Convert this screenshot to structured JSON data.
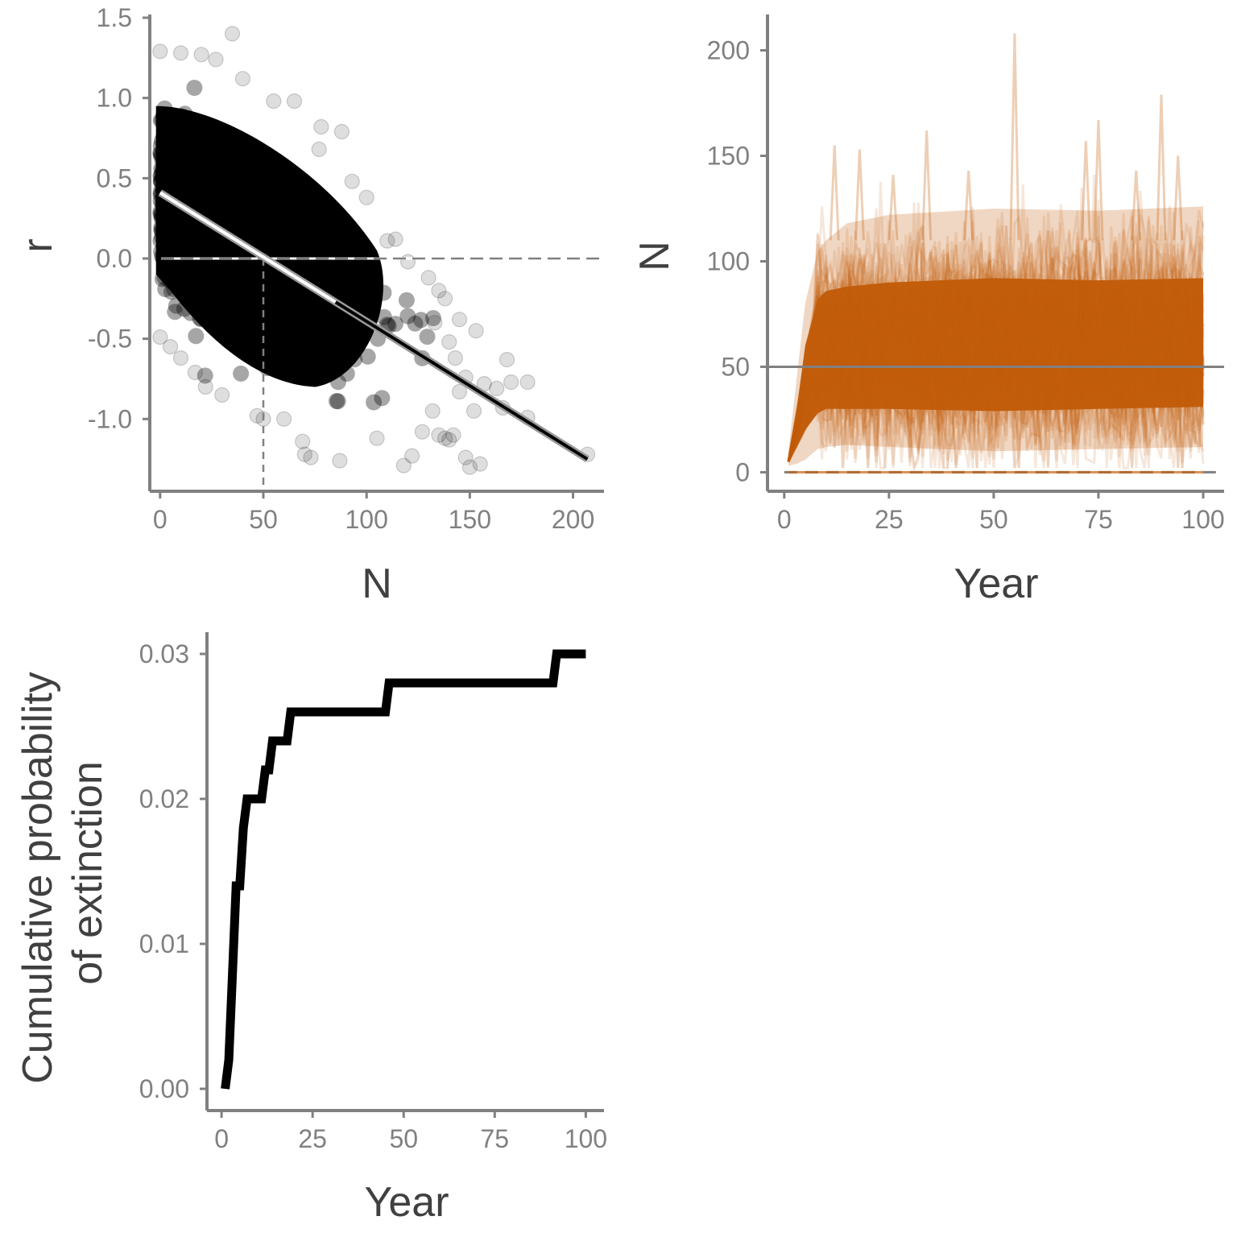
{
  "colors": {
    "axis": "#808080",
    "text": "#404040",
    "points": "#000000",
    "trajectories": "#C45F0E",
    "reference_line": "#808080"
  },
  "chart_data": [
    {
      "id": "panel-a",
      "type": "scatter",
      "xlabel": "N",
      "ylabel": "r",
      "xlim": [
        -5,
        215
      ],
      "ylim": [
        -1.45,
        1.52
      ],
      "xticks": [
        0,
        50,
        100,
        150,
        200
      ],
      "xtick_labels": [
        "0",
        "50",
        "100",
        "150",
        "200"
      ],
      "yticks": [
        -1.0,
        -0.5,
        0.0,
        0.5,
        1.0,
        1.5
      ],
      "ytick_labels": [
        "-1.0",
        "-0.5",
        "0.0",
        "0.5",
        "1.0",
        "1.5"
      ],
      "grid": false,
      "point_color": "#000000",
      "point_opacity": 0.12,
      "highlighted_points": [
        {
          "x": 35,
          "y": 1.4
        },
        {
          "x": 0,
          "y": 1.29
        },
        {
          "x": 10,
          "y": 1.28
        },
        {
          "x": 20,
          "y": 1.27
        },
        {
          "x": 27,
          "y": 1.24
        },
        {
          "x": 40,
          "y": 1.12
        },
        {
          "x": 55,
          "y": 0.98
        },
        {
          "x": 65,
          "y": 0.98
        },
        {
          "x": 78,
          "y": 0.82
        },
        {
          "x": 88,
          "y": 0.79
        },
        {
          "x": 77,
          "y": 0.68
        },
        {
          "x": 93,
          "y": 0.48
        },
        {
          "x": 100,
          "y": 0.38
        },
        {
          "x": 110,
          "y": 0.11
        },
        {
          "x": 114,
          "y": 0.12
        },
        {
          "x": 120,
          "y": -0.02
        },
        {
          "x": 130,
          "y": -0.12
        },
        {
          "x": 135,
          "y": -0.2
        },
        {
          "x": 138,
          "y": -0.25
        },
        {
          "x": 133,
          "y": -0.4
        },
        {
          "x": 140,
          "y": -0.52
        },
        {
          "x": 145,
          "y": -0.38
        },
        {
          "x": 153,
          "y": -0.45
        },
        {
          "x": 143,
          "y": -0.62
        },
        {
          "x": 148,
          "y": -0.74
        },
        {
          "x": 157,
          "y": -0.78
        },
        {
          "x": 145,
          "y": -0.83
        },
        {
          "x": 163,
          "y": -0.81
        },
        {
          "x": 168,
          "y": -0.63
        },
        {
          "x": 170,
          "y": -0.77
        },
        {
          "x": 178,
          "y": -0.77
        },
        {
          "x": 166,
          "y": -0.93
        },
        {
          "x": 178,
          "y": -0.99
        },
        {
          "x": 152,
          "y": -0.95
        },
        {
          "x": 138,
          "y": -1.12
        },
        {
          "x": 148,
          "y": -1.24
        },
        {
          "x": 140,
          "y": -1.13
        },
        {
          "x": 155,
          "y": -1.28
        },
        {
          "x": 150,
          "y": -1.3
        },
        {
          "x": 122,
          "y": -1.23
        },
        {
          "x": 118,
          "y": -1.29
        },
        {
          "x": 105,
          "y": -1.12
        },
        {
          "x": 73,
          "y": -1.24
        },
        {
          "x": 87,
          "y": -1.26
        },
        {
          "x": 70,
          "y": -1.22
        },
        {
          "x": 69,
          "y": -1.14
        },
        {
          "x": 60,
          "y": -1.0
        },
        {
          "x": 50,
          "y": -1.0
        },
        {
          "x": 47,
          "y": -0.98
        },
        {
          "x": 30,
          "y": -0.85
        },
        {
          "x": 22,
          "y": -0.8
        },
        {
          "x": 17,
          "y": -0.71
        },
        {
          "x": 10,
          "y": -0.62
        },
        {
          "x": 5,
          "y": -0.55
        },
        {
          "x": 0,
          "y": -0.49
        },
        {
          "x": 207,
          "y": -1.22
        },
        {
          "x": 127,
          "y": -1.08
        },
        {
          "x": 135,
          "y": -1.1
        },
        {
          "x": 142,
          "y": -1.1
        },
        {
          "x": 132,
          "y": -0.95
        }
      ],
      "fit_line": {
        "x": [
          0,
          207
        ],
        "y": [
          0.41,
          -1.25
        ]
      },
      "reference_hline": {
        "y": 0.0,
        "style": "dashed"
      },
      "reference_vline": {
        "x": 50,
        "y_end": 0.0,
        "style": "dashed"
      }
    },
    {
      "id": "panel-b",
      "type": "line",
      "xlabel": "Year",
      "ylabel": "N",
      "xlim": [
        -4,
        105
      ],
      "ylim": [
        -9,
        217
      ],
      "xticks": [
        0,
        25,
        50,
        75,
        100
      ],
      "xtick_labels": [
        "0",
        "25",
        "50",
        "75",
        "100"
      ],
      "yticks": [
        0,
        50,
        100,
        150,
        200
      ],
      "ytick_labels": [
        "0",
        "50",
        "100",
        "150",
        "200"
      ],
      "grid": false,
      "line_color": "#C45F0E",
      "line_opacity": 0.12,
      "initial_N": 5,
      "carrying_capacity_line": {
        "y": 50,
        "style": "solid"
      },
      "zero_line": {
        "y": 0,
        "style": "dashed"
      },
      "band": {
        "years": [
          1,
          3,
          5,
          8,
          10,
          15,
          25,
          50,
          75,
          100
        ],
        "lower": [
          3,
          4,
          6,
          11,
          12,
          13,
          12,
          10,
          11,
          12
        ],
        "central_lower": [
          5,
          12,
          20,
          28,
          30,
          30,
          30,
          29,
          30,
          31
        ],
        "central_upper": [
          8,
          30,
          60,
          82,
          86,
          88,
          90,
          92,
          91,
          92
        ],
        "upper": [
          10,
          45,
          80,
          105,
          110,
          118,
          122,
          125,
          124,
          126
        ]
      },
      "spikes": [
        {
          "x": 12,
          "y": 155
        },
        {
          "x": 18,
          "y": 153
        },
        {
          "x": 34,
          "y": 162
        },
        {
          "x": 55,
          "y": 208
        },
        {
          "x": 72,
          "y": 157
        },
        {
          "x": 75,
          "y": 167
        },
        {
          "x": 90,
          "y": 179
        },
        {
          "x": 94,
          "y": 150
        },
        {
          "x": 26,
          "y": 141
        },
        {
          "x": 44,
          "y": 143
        },
        {
          "x": 84,
          "y": 143
        }
      ]
    },
    {
      "id": "panel-c",
      "type": "line",
      "xlabel": "Year",
      "ylabel_lines": [
        "Cumulative probability",
        "of extinction"
      ],
      "xlim": [
        -4,
        105
      ],
      "ylim": [
        -0.0015,
        0.0315
      ],
      "xticks": [
        0,
        25,
        50,
        75,
        100
      ],
      "xtick_labels": [
        "0",
        "25",
        "50",
        "75",
        "100"
      ],
      "yticks": [
        0.0,
        0.01,
        0.02,
        0.03
      ],
      "ytick_labels": [
        "0.00",
        "0.01",
        "0.02",
        "0.03"
      ],
      "grid": false,
      "line_color": "#000000",
      "x": [
        1,
        2,
        3,
        4,
        5,
        6,
        7,
        8,
        9,
        10,
        11,
        12,
        13,
        14,
        15,
        16,
        17,
        18,
        19,
        20,
        25,
        30,
        35,
        40,
        45,
        46,
        47,
        50,
        60,
        70,
        80,
        90,
        91,
        92,
        93,
        100
      ],
      "y": [
        0.0,
        0.002,
        0.008,
        0.014,
        0.014,
        0.018,
        0.02,
        0.02,
        0.02,
        0.02,
        0.02,
        0.022,
        0.022,
        0.024,
        0.024,
        0.024,
        0.024,
        0.024,
        0.026,
        0.026,
        0.026,
        0.026,
        0.026,
        0.026,
        0.026,
        0.028,
        0.028,
        0.028,
        0.028,
        0.028,
        0.028,
        0.028,
        0.028,
        0.03,
        0.03,
        0.03
      ]
    }
  ]
}
